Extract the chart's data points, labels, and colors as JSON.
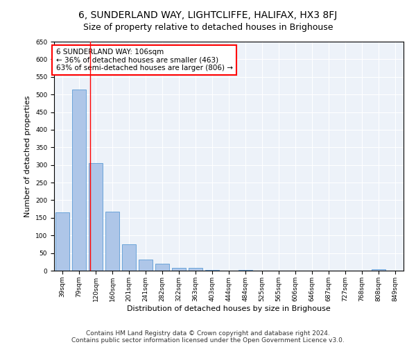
{
  "title": "6, SUNDERLAND WAY, LIGHTCLIFFE, HALIFAX, HX3 8FJ",
  "subtitle": "Size of property relative to detached houses in Brighouse",
  "xlabel": "Distribution of detached houses by size in Brighouse",
  "ylabel": "Number of detached properties",
  "categories": [
    "39sqm",
    "79sqm",
    "120sqm",
    "160sqm",
    "201sqm",
    "241sqm",
    "282sqm",
    "322sqm",
    "363sqm",
    "403sqm",
    "444sqm",
    "484sqm",
    "525sqm",
    "565sqm",
    "606sqm",
    "646sqm",
    "687sqm",
    "727sqm",
    "768sqm",
    "808sqm",
    "849sqm"
  ],
  "values": [
    165,
    515,
    305,
    168,
    75,
    32,
    20,
    8,
    8,
    1,
    0,
    2,
    0,
    0,
    0,
    0,
    0,
    0,
    0,
    4,
    0
  ],
  "bar_color": "#aec6e8",
  "bar_edgecolor": "#5b9bd5",
  "annotation_box_text": "6 SUNDERLAND WAY: 106sqm\n← 36% of detached houses are smaller (463)\n63% of semi-detached houses are larger (806) →",
  "annotation_box_color": "white",
  "annotation_box_edgecolor": "red",
  "red_line_x": 1.65,
  "ylim": [
    0,
    650
  ],
  "yticks": [
    0,
    50,
    100,
    150,
    200,
    250,
    300,
    350,
    400,
    450,
    500,
    550,
    600,
    650
  ],
  "footer_line1": "Contains HM Land Registry data © Crown copyright and database right 2024.",
  "footer_line2": "Contains public sector information licensed under the Open Government Licence v3.0.",
  "background_color": "#edf2f9",
  "title_fontsize": 10,
  "subtitle_fontsize": 9,
  "axis_label_fontsize": 8,
  "tick_fontsize": 6.5,
  "annotation_fontsize": 7.5,
  "footer_fontsize": 6.5
}
